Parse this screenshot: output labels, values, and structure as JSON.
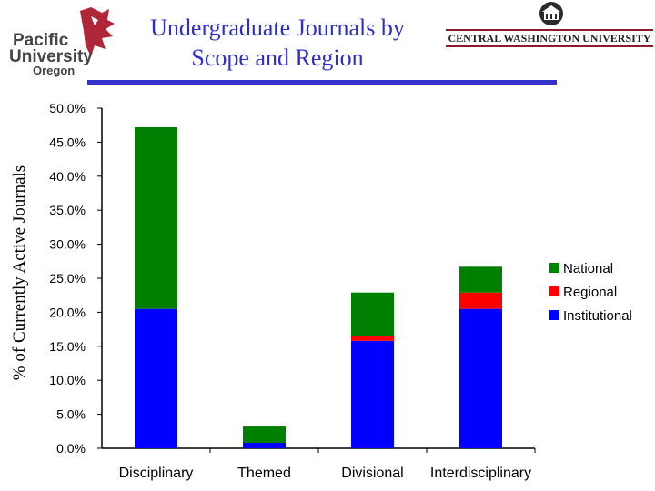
{
  "header": {
    "left_logo": {
      "line1": "Pacific",
      "line2": "University",
      "line3": "Oregon"
    },
    "right_logo": {
      "text": "CENTRAL WASHINGTON UNIVERSITY"
    },
    "colors": {
      "title": "#2d2dcf",
      "rule": "#3333cc",
      "pacific_red": "#b0273a",
      "cwu_red": "#8a1c2a"
    }
  },
  "chart_data": {
    "type": "bar",
    "stacked": true,
    "title": "Undergraduate Journals by Scope and Region",
    "ylabel": "% of Currently Active Journals",
    "xlabel": "",
    "categories": [
      "Disciplinary",
      "Themed",
      "Divisional",
      "Interdisciplinary"
    ],
    "series": [
      {
        "name": "Institutional",
        "color": "#0000ff",
        "values": [
          20.5,
          0.8,
          15.8,
          20.5
        ]
      },
      {
        "name": "Regional",
        "color": "#ff0000",
        "values": [
          0,
          0,
          0.7,
          2.4
        ]
      },
      {
        "name": "National",
        "color": "#008000",
        "values": [
          26.7,
          2.4,
          6.4,
          3.8
        ]
      }
    ],
    "legend_order": [
      "National",
      "Regional",
      "Institutional"
    ],
    "legend_position": "right",
    "ylim": [
      0,
      50
    ],
    "yticks": [
      "0.0%",
      "5.0%",
      "10.0%",
      "15.0%",
      "20.0%",
      "25.0%",
      "30.0%",
      "35.0%",
      "40.0%",
      "45.0%",
      "50.0%"
    ],
    "grid": false
  }
}
